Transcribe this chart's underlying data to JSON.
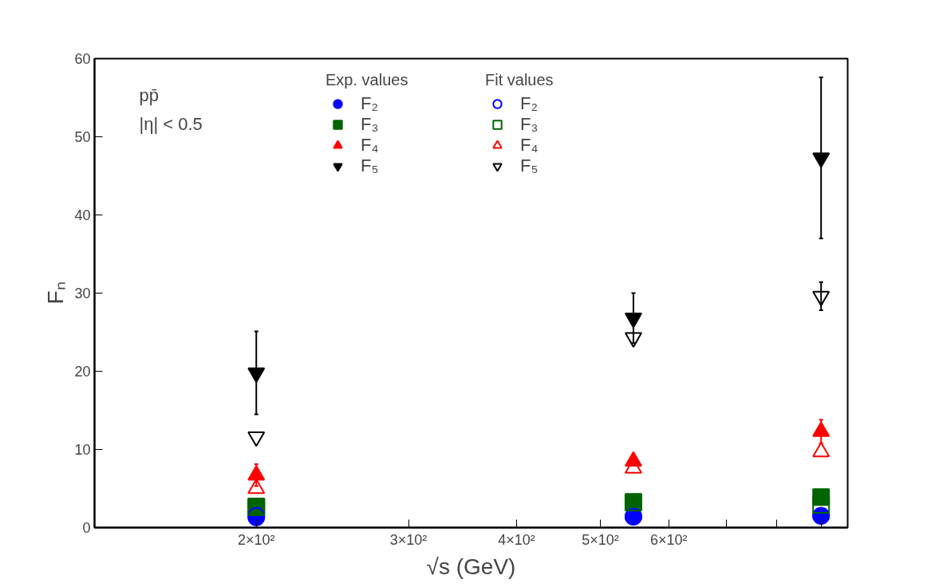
{
  "chart_data": {
    "type": "scatter",
    "xlabel": "√s (GeV)",
    "ylabel": "Fₙ",
    "log": "x",
    "grid": false,
    "legend": "top",
    "x": [
      200,
      546,
      900
    ],
    "xlim": [
      130,
      966
    ],
    "xticks": [
      {
        "value": 200,
        "label": "2×10²"
      },
      {
        "value": 300,
        "label": "3×10²"
      },
      {
        "value": 400,
        "label": "4×10²"
      },
      {
        "value": 500,
        "label": "5×10²"
      },
      {
        "value": 600,
        "label": "6×10²"
      },
      {
        "value": 700,
        "label": null
      },
      {
        "value": 800,
        "label": null
      },
      {
        "value": 900,
        "label": null
      }
    ],
    "ylim": [
      0,
      60
    ],
    "yticks": [
      0,
      10,
      20,
      30,
      40,
      50,
      60
    ],
    "annotations": [
      "Exp. values",
      "Fit values",
      "pp̄",
      "|η| < 0.5"
    ],
    "series": [
      {
        "name": "F₂",
        "color": "#0000ff",
        "marker": "circle",
        "values": [
          1.3,
          1.4,
          1.5
        ]
      },
      {
        "name": "F₃",
        "color": "#006400",
        "marker": "square",
        "values": [
          2.7,
          3.3,
          3.9
        ]
      },
      {
        "name": "F₄",
        "color": "#ff0000",
        "marker": "triangle",
        "values": [
          6.7,
          8.5,
          12.3
        ],
        "errors": [
          1.4,
          null,
          1.5
        ]
      },
      {
        "name": "F₅",
        "color": "#000000",
        "values": [
          19.8,
          26.8,
          47.3
        ],
        "errors": [
          5.3,
          3.2,
          10.3
        ]
      },
      {
        "name": "F₂",
        "color": "#0000ff",
        "marker": "circle",
        "values": [
          1.5,
          1.4,
          1.5
        ]
      },
      {
        "name": "F₃",
        "color": "#006400",
        "marker": "square",
        "values": [
          2.6,
          3.2,
          2.9
        ]
      },
      {
        "name": "F₄",
        "color": "#ff0000",
        "marker": "triangle",
        "values": [
          5.0,
          7.6,
          9.7
        ]
      },
      {
        "name": "F₅",
        "color": "#000000",
        "values": [
          11.6,
          24.3,
          29.6
        ],
        "errors": [
          null,
          null,
          1.8
        ]
      }
    ]
  }
}
